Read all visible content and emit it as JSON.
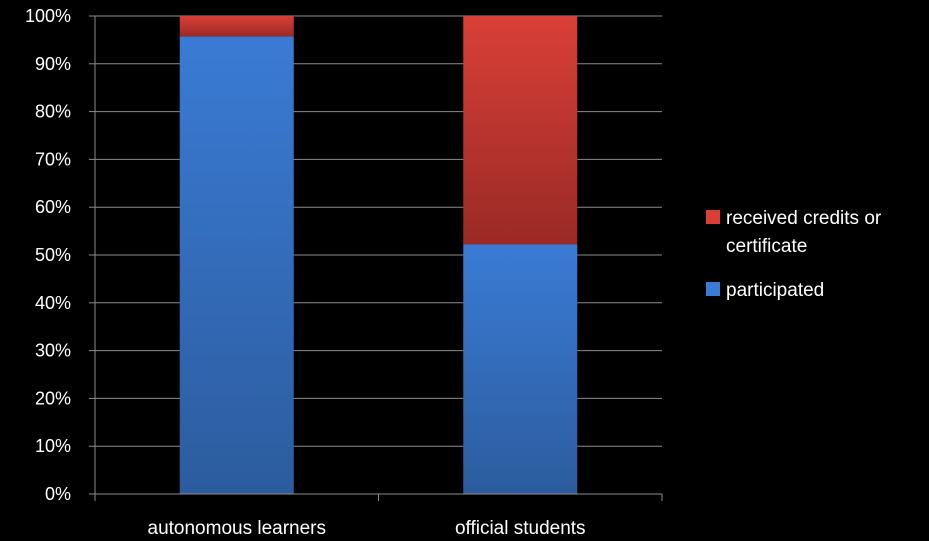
{
  "chart_data": {
    "type": "bar",
    "stacked": true,
    "normalized": true,
    "categories": [
      "autonomous learners",
      "official students"
    ],
    "series": [
      {
        "name": "participated",
        "color": "#3a7bd5",
        "color_dark": "#2c5c9e",
        "values": [
          95.7,
          52.2
        ]
      },
      {
        "name": "received credits or certificate",
        "color": "#d93f37",
        "color_dark": "#9a2a26",
        "values": [
          4.3,
          47.8
        ]
      }
    ],
    "ylim": [
      0,
      100
    ],
    "yticks": [
      "0%",
      "10%",
      "20%",
      "30%",
      "40%",
      "50%",
      "60%",
      "70%",
      "80%",
      "90%",
      "100%"
    ],
    "grid": true,
    "legend_position": "right",
    "legend": [
      {
        "lines": [
          "received credits or",
          "certificate"
        ],
        "color": "#d93f37"
      },
      {
        "lines": [
          "participated"
        ],
        "color": "#3a7bd5"
      }
    ]
  }
}
